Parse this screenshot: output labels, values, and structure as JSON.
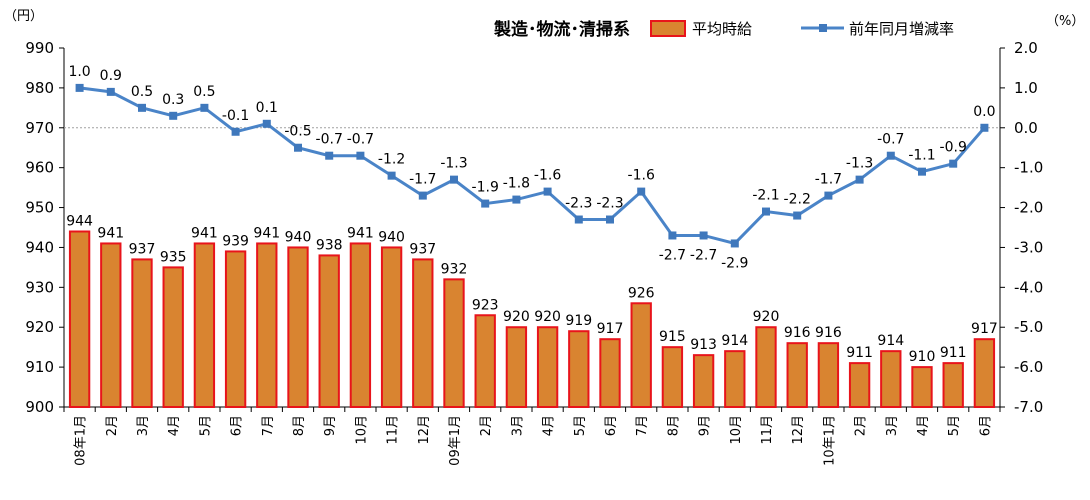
{
  "chart_data": {
    "type": "bar",
    "title": "製造･物流･清掃系",
    "left_unit": "（円）",
    "right_unit": "（%）",
    "categories": [
      "08年1月",
      "2月",
      "3月",
      "4月",
      "5月",
      "6月",
      "7月",
      "8月",
      "9月",
      "10月",
      "11月",
      "12月",
      "09年1月",
      "2月",
      "3月",
      "4月",
      "5月",
      "6月",
      "7月",
      "8月",
      "9月",
      "10月",
      "11月",
      "12月",
      "10年1月",
      "2月",
      "3月",
      "4月",
      "5月",
      "6月"
    ],
    "series": [
      {
        "name": "平均時給",
        "type": "bar",
        "axis": "left",
        "color": "#D98430",
        "edge_color": "#E8141B",
        "values": [
          944,
          941,
          937,
          935,
          941,
          939,
          941,
          940,
          938,
          941,
          940,
          937,
          932,
          923,
          920,
          920,
          919,
          917,
          926,
          915,
          913,
          914,
          920,
          916,
          916,
          911,
          914,
          910,
          911,
          917
        ]
      },
      {
        "name": "前年同月増減率",
        "type": "line",
        "axis": "right",
        "color": "#4A84C8",
        "marker_color": "#3F78BC",
        "values": [
          1.0,
          0.9,
          0.5,
          0.3,
          0.5,
          -0.1,
          0.1,
          -0.5,
          -0.7,
          -0.7,
          -1.2,
          -1.7,
          -1.3,
          -1.9,
          -1.8,
          -1.6,
          -2.3,
          -2.3,
          -1.6,
          -2.7,
          -2.7,
          -2.9,
          -2.1,
          -2.2,
          -1.7,
          -1.3,
          -0.7,
          -1.1,
          -0.9,
          0.0
        ]
      }
    ],
    "y_left": {
      "min": 900,
      "max": 990,
      "step": 10,
      "ticks": [
        "900",
        "910",
        "920",
        "930",
        "940",
        "950",
        "960",
        "970",
        "980",
        "990"
      ]
    },
    "y_right": {
      "min": -7.0,
      "max": 2.0,
      "step": 1.0,
      "ticks": [
        "-7.0",
        "-6.0",
        "-5.0",
        "-4.0",
        "-3.0",
        "-2.0",
        "-1.0",
        "0.0",
        "1.0",
        "2.0"
      ]
    },
    "reference_line": {
      "axis": "right",
      "value": 0.0,
      "style": "dotted",
      "color": "#A0A0A0"
    },
    "grid": false,
    "legend": "top-right"
  }
}
